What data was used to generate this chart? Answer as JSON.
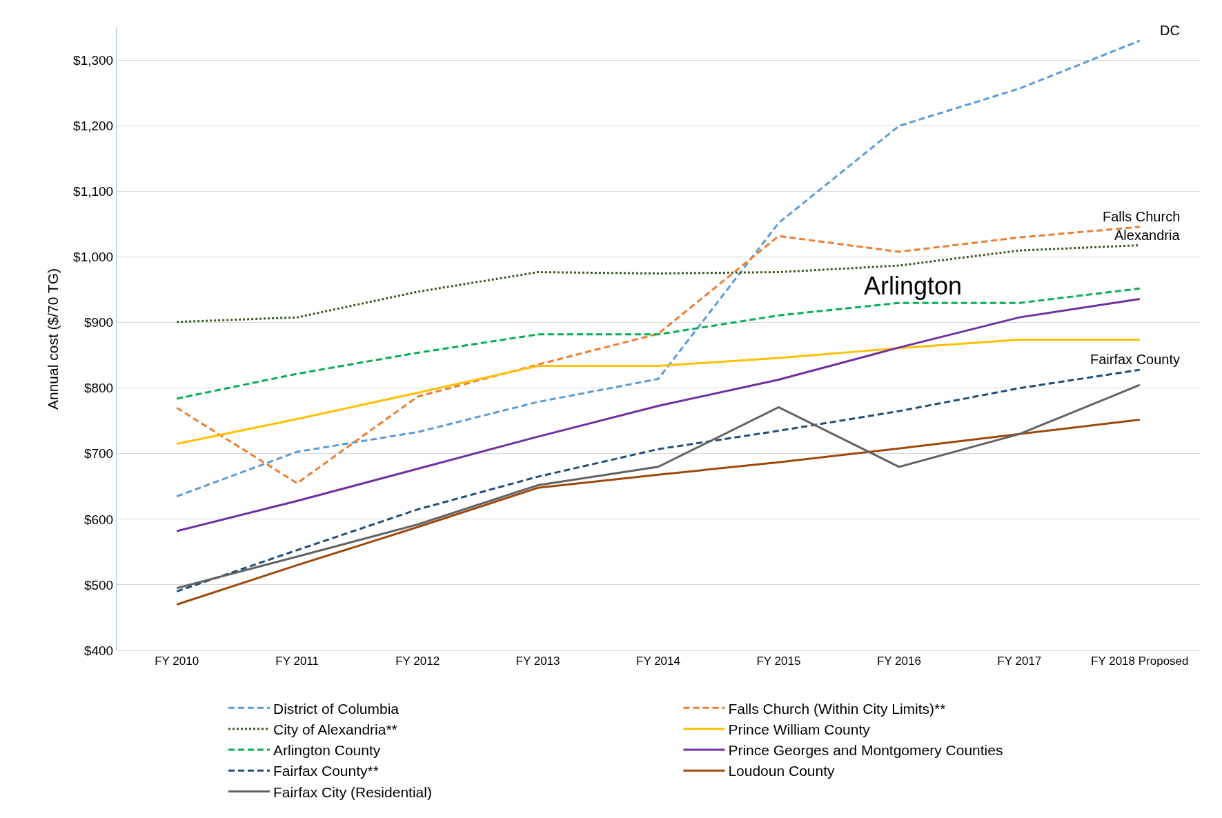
{
  "chart_data": {
    "type": "line",
    "ylabel": "Annual cost ($/70 TG)",
    "categories": [
      "FY 2010",
      "FY 2011",
      "FY 2012",
      "FY 2013",
      "FY 2014",
      "FY 2015",
      "FY 2016",
      "FY 2017",
      "FY 2018 Proposed"
    ],
    "ylim": [
      400,
      1350
    ],
    "yticks": [
      {
        "value": 400,
        "label": "$400"
      },
      {
        "value": 500,
        "label": "$500"
      },
      {
        "value": 600,
        "label": "$600"
      },
      {
        "value": 700,
        "label": "$700"
      },
      {
        "value": 800,
        "label": "$800"
      },
      {
        "value": 900,
        "label": "$900"
      },
      {
        "value": 1000,
        "label": "$1,000"
      },
      {
        "value": 1100,
        "label": "$1,100"
      },
      {
        "value": 1200,
        "label": "$1,200"
      },
      {
        "value": 1300,
        "label": "$1,300"
      }
    ],
    "grid": "y",
    "legend": "bottom",
    "marker": "none",
    "series": [
      {
        "name": "District of Columbia",
        "color": "#5b9bd5",
        "line_style": "dashed",
        "values": [
          635,
          703,
          733,
          779,
          814,
          1052,
          1200,
          1257,
          1330
        ]
      },
      {
        "name": "Falls Church (Within City Limits)**",
        "color": "#ed7d31",
        "line_style": "dashed",
        "values": [
          770,
          655,
          787,
          836,
          883,
          1032,
          1008,
          1030,
          1046
        ]
      },
      {
        "name": "City of Alexandria**",
        "color": "#375623",
        "line_style": "dotted",
        "values": [
          901,
          908,
          947,
          977,
          975,
          977,
          987,
          1010,
          1018
        ]
      },
      {
        "name": "Prince William County",
        "color": "#ffc000",
        "line_style": "solid",
        "values": [
          715,
          753,
          793,
          834,
          834,
          846,
          861,
          874,
          874
        ]
      },
      {
        "name": "Arlington County",
        "color": "#00b050",
        "line_style": "dashed",
        "values": [
          784,
          822,
          854,
          882,
          882,
          911,
          930,
          930,
          952
        ]
      },
      {
        "name": "Prince Georges and Montgomery Counties",
        "color": "#7030a0",
        "line_style": "solid",
        "values": [
          582,
          628,
          677,
          726,
          773,
          813,
          862,
          908,
          936
        ]
      },
      {
        "name": "Fairfax County**",
        "color": "#1f4e79",
        "line_style": "dashed",
        "values": [
          490,
          553,
          615,
          665,
          707,
          735,
          765,
          800,
          828
        ]
      },
      {
        "name": "Loudoun County",
        "color": "#9e480e",
        "line_style": "solid",
        "values": [
          470,
          530,
          588,
          648,
          668,
          687,
          708,
          730,
          752
        ]
      },
      {
        "name": "Fairfax City (Residential)",
        "color": "#636363",
        "line_style": "solid",
        "values": [
          495,
          543,
          592,
          652,
          680,
          771,
          680,
          730,
          805
        ]
      }
    ],
    "annotations": [
      {
        "text": "DC",
        "x": "FY 2018 Proposed",
        "y": 1330
      },
      {
        "text": "Falls Church",
        "x": "FY 2018 Proposed",
        "y": 1046
      },
      {
        "text": "Alexandria",
        "x": "FY 2018 Proposed",
        "y": 1018
      },
      {
        "text": "Arlington",
        "x": "FY 2016",
        "y": 930
      },
      {
        "text": "Fairfax County",
        "x": "FY 2018 Proposed",
        "y": 828
      }
    ]
  }
}
